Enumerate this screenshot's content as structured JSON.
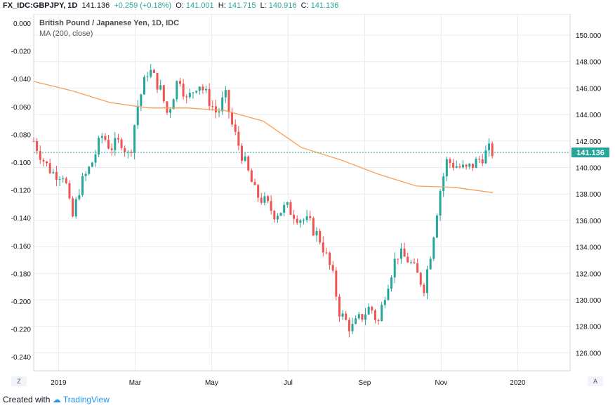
{
  "header": {
    "symbol": "FX_IDC:GBPJPY, 1D",
    "last": "141.136",
    "change": "+0.259 (+0.18%)",
    "o_label": "O:",
    "o": "141.001",
    "h_label": "H:",
    "h": "141.715",
    "l_label": "L:",
    "l": "140.916",
    "c_label": "C:",
    "c": "141.136"
  },
  "legend": {
    "title": "British Pound / Japanese Yen, 1D, IDC",
    "indicator": "MA (200, close)"
  },
  "footer": {
    "created_with": "Created with",
    "brand": "TradingView"
  },
  "buttons": {
    "zoom": "Z",
    "auto": "A"
  },
  "colors": {
    "up": "#26a69a",
    "down": "#ef5350",
    "ma": "#f5a05a",
    "price_line": "#26a69a",
    "grid": "#e9ecf2"
  },
  "chart_data": {
    "type": "candlestick",
    "title": "British Pound / Japanese Yen, 1D, IDC",
    "left_axis": {
      "ticks": [
        "0.000",
        "-0.020",
        "-0.040",
        "-0.060",
        "-0.080",
        "-0.100",
        "-0.120",
        "-0.140",
        "-0.160",
        "-0.180",
        "-0.200",
        "-0.220",
        "-0.240"
      ]
    },
    "right_axis": {
      "ticks": [
        "150.000",
        "148.000",
        "146.000",
        "144.000",
        "142.000",
        "140.000",
        "138.000",
        "136.000",
        "134.000",
        "132.000",
        "130.000",
        "128.000",
        "126.000"
      ],
      "range": [
        124.8,
        151.8
      ]
    },
    "x_axis": {
      "ticks": [
        {
          "label": "2019",
          "month": 1
        },
        {
          "label": "Mar",
          "month": 3
        },
        {
          "label": "May",
          "month": 5
        },
        {
          "label": "Jul",
          "month": 7
        },
        {
          "label": "Sep",
          "month": 9
        },
        {
          "label": "Nov",
          "month": 11
        },
        {
          "label": "2020",
          "month": 13
        }
      ]
    },
    "last_price_label": "141.136",
    "series": [
      {
        "name": "GBPJPY close",
        "points": [
          {
            "month": 0.0,
            "close": 142.0
          },
          {
            "month": 0.3,
            "close": 140.3
          },
          {
            "month": 0.5,
            "close": 139.6
          },
          {
            "month": 0.8,
            "close": 139.5
          },
          {
            "month": 1.0,
            "close": 136.0
          },
          {
            "month": 1.2,
            "close": 138.5
          },
          {
            "month": 1.5,
            "close": 140.2
          },
          {
            "month": 1.8,
            "close": 142.5
          },
          {
            "month": 2.0,
            "close": 141.5
          },
          {
            "month": 2.3,
            "close": 142.0
          },
          {
            "month": 2.5,
            "close": 140.7
          },
          {
            "month": 2.7,
            "close": 144.5
          },
          {
            "month": 3.0,
            "close": 147.5
          },
          {
            "month": 3.3,
            "close": 146.0
          },
          {
            "month": 3.5,
            "close": 144.0
          },
          {
            "month": 3.8,
            "close": 147.0
          },
          {
            "month": 4.0,
            "close": 145.0
          },
          {
            "month": 4.3,
            "close": 146.5
          },
          {
            "month": 4.6,
            "close": 145.0
          },
          {
            "month": 4.8,
            "close": 144.0
          },
          {
            "month": 5.0,
            "close": 145.5
          },
          {
            "month": 5.2,
            "close": 143.0
          },
          {
            "month": 5.5,
            "close": 140.5
          },
          {
            "month": 5.8,
            "close": 138.0
          },
          {
            "month": 6.0,
            "close": 137.5
          },
          {
            "month": 6.3,
            "close": 136.5
          },
          {
            "month": 6.6,
            "close": 137.0
          },
          {
            "month": 6.9,
            "close": 136.3
          },
          {
            "month": 7.2,
            "close": 135.8
          },
          {
            "month": 7.5,
            "close": 134.5
          },
          {
            "month": 7.8,
            "close": 132.0
          },
          {
            "month": 8.0,
            "close": 129.0
          },
          {
            "month": 8.3,
            "close": 127.8
          },
          {
            "month": 8.5,
            "close": 128.5
          },
          {
            "month": 8.8,
            "close": 129.5
          },
          {
            "month": 9.0,
            "close": 128.2
          },
          {
            "month": 9.2,
            "close": 130.8
          },
          {
            "month": 9.5,
            "close": 133.5
          },
          {
            "month": 9.8,
            "close": 133.0
          },
          {
            "month": 10.0,
            "close": 132.0
          },
          {
            "month": 10.2,
            "close": 131.0
          },
          {
            "month": 10.4,
            "close": 134.0
          },
          {
            "month": 10.6,
            "close": 138.0
          },
          {
            "month": 10.8,
            "close": 140.5
          },
          {
            "month": 11.0,
            "close": 140.2
          },
          {
            "month": 11.3,
            "close": 139.8
          },
          {
            "month": 11.6,
            "close": 140.5
          },
          {
            "month": 11.9,
            "close": 141.3
          },
          {
            "month": 12.0,
            "close": 141.136
          }
        ]
      },
      {
        "name": "MA (200, close)",
        "points": [
          {
            "month": 0.0,
            "value": 146.5
          },
          {
            "month": 1.0,
            "value": 145.8
          },
          {
            "month": 2.0,
            "value": 144.9
          },
          {
            "month": 3.0,
            "value": 144.5
          },
          {
            "month": 4.0,
            "value": 144.5
          },
          {
            "month": 5.0,
            "value": 144.3
          },
          {
            "month": 6.0,
            "value": 143.5
          },
          {
            "month": 7.0,
            "value": 141.5
          },
          {
            "month": 8.0,
            "value": 140.6
          },
          {
            "month": 9.0,
            "value": 139.5
          },
          {
            "month": 10.0,
            "value": 138.6
          },
          {
            "month": 11.0,
            "value": 138.5
          },
          {
            "month": 12.0,
            "value": 138.1
          }
        ]
      }
    ],
    "grid": true
  }
}
